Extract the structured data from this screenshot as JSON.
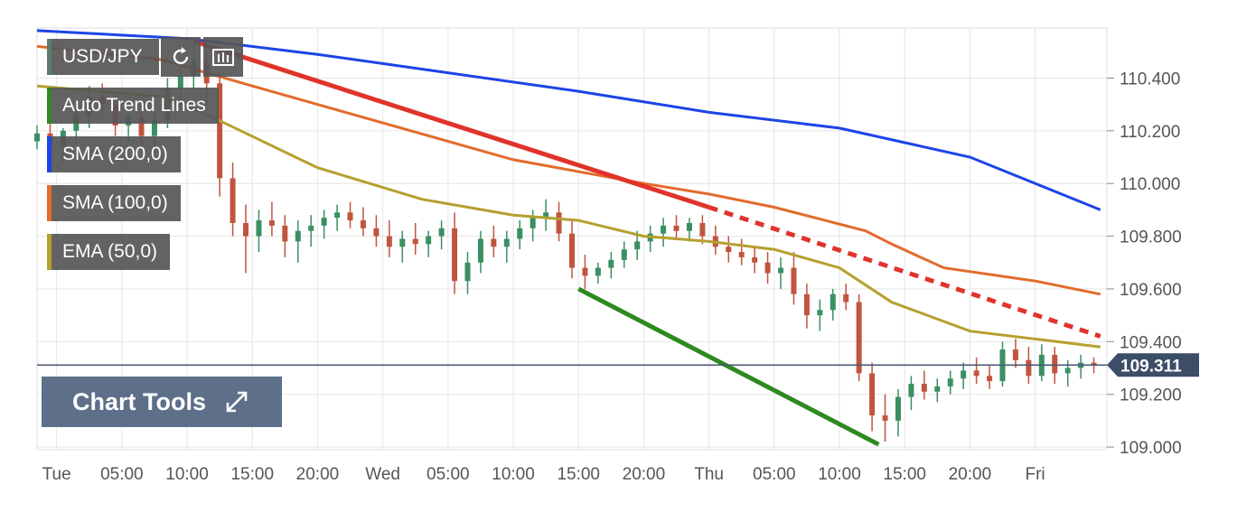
{
  "chart_data": {
    "type": "line",
    "symbol": "USD/JPY",
    "x_tick_labels": [
      "Tue",
      "05:00",
      "10:00",
      "15:00",
      "20:00",
      "Wed",
      "05:00",
      "10:00",
      "15:00",
      "20:00",
      "Thu",
      "05:00",
      "10:00",
      "15:00",
      "20:00",
      "Fri"
    ],
    "y_tick_labels": [
      "110.400",
      "110.200",
      "110.000",
      "109.800",
      "109.600",
      "109.400",
      "109.200",
      "109.000"
    ],
    "y_ticks": [
      110.4,
      110.2,
      110.0,
      109.8,
      109.6,
      109.4,
      109.2,
      109.0
    ],
    "ylim": [
      108.99,
      110.59
    ],
    "x_hours_range": [
      -1.5,
      80.5
    ],
    "grid": true,
    "current_price": 109.311,
    "current_price_label": "109.311",
    "indicators": [
      {
        "name": "SMA (200,0)",
        "color": "#1d44e8",
        "points": [
          [
            -1.5,
            110.58
          ],
          [
            10,
            110.55
          ],
          [
            20,
            110.49
          ],
          [
            30,
            110.42
          ],
          [
            40,
            110.35
          ],
          [
            50,
            110.27
          ],
          [
            60,
            110.21
          ],
          [
            70,
            110.1
          ],
          [
            80,
            109.9
          ]
        ]
      },
      {
        "name": "SMA (100,0)",
        "color": "#e36b2c",
        "points": [
          [
            -1.5,
            110.52
          ],
          [
            8,
            110.47
          ],
          [
            15,
            110.37
          ],
          [
            25,
            110.23
          ],
          [
            35,
            110.09
          ],
          [
            45,
            110.0
          ],
          [
            50,
            109.96
          ],
          [
            55,
            109.91
          ],
          [
            62,
            109.82
          ],
          [
            64,
            109.77
          ],
          [
            68,
            109.68
          ],
          [
            75,
            109.63
          ],
          [
            80,
            109.58
          ]
        ]
      },
      {
        "name": "EMA (50,0)",
        "color": "#b5a02f",
        "points": [
          [
            -1.5,
            110.37
          ],
          [
            8,
            110.33
          ],
          [
            12,
            110.25
          ],
          [
            20,
            110.06
          ],
          [
            28,
            109.94
          ],
          [
            35,
            109.88
          ],
          [
            40,
            109.86
          ],
          [
            45,
            109.8
          ],
          [
            50,
            109.78
          ],
          [
            55,
            109.75
          ],
          [
            60,
            109.68
          ],
          [
            64,
            109.55
          ],
          [
            70,
            109.44
          ],
          [
            75,
            109.41
          ],
          [
            80,
            109.38
          ]
        ]
      }
    ],
    "auto_trend_lines": {
      "name": "Auto Trend Lines",
      "lines": [
        {
          "color": "#e0342a",
          "style": "solid",
          "points": [
            [
              10.5,
              110.54
            ],
            [
              50,
              109.91
            ]
          ]
        },
        {
          "color": "#e0342a",
          "style": "dashed",
          "points": [
            [
              50,
              109.91
            ],
            [
              80,
              109.42
            ]
          ]
        },
        {
          "color": "#2d8a1f",
          "style": "solid",
          "points": [
            [
              40,
              109.6
            ],
            [
              63,
              109.01
            ]
          ]
        }
      ]
    },
    "candles": [
      [
        -1.5,
        110.16,
        110.22,
        110.13,
        110.19
      ],
      [
        -0.5,
        110.19,
        110.24,
        110.12,
        110.14
      ],
      [
        0.5,
        110.14,
        110.21,
        110.08,
        110.2
      ],
      [
        1.5,
        110.2,
        110.3,
        110.15,
        110.26
      ],
      [
        2.5,
        110.26,
        110.37,
        110.21,
        110.33
      ],
      [
        3.5,
        110.33,
        110.38,
        110.26,
        110.3
      ],
      [
        4.5,
        110.3,
        110.33,
        110.18,
        110.22
      ],
      [
        5.5,
        110.22,
        110.28,
        110.16,
        110.25
      ],
      [
        6.5,
        110.25,
        110.31,
        110.14,
        110.18
      ],
      [
        7.5,
        110.18,
        110.27,
        110.12,
        110.24
      ],
      [
        8.5,
        110.24,
        110.4,
        110.21,
        110.36
      ],
      [
        9.5,
        110.36,
        110.45,
        110.3,
        110.41
      ],
      [
        10.5,
        110.41,
        110.53,
        110.35,
        110.46
      ],
      [
        11.5,
        110.46,
        110.5,
        110.3,
        110.38
      ],
      [
        12.5,
        110.38,
        110.42,
        109.95,
        110.02
      ],
      [
        13.5,
        110.02,
        110.08,
        109.8,
        109.85
      ],
      [
        14.5,
        109.85,
        109.92,
        109.66,
        109.8
      ],
      [
        15.5,
        109.8,
        109.9,
        109.74,
        109.86
      ],
      [
        16.5,
        109.86,
        109.93,
        109.8,
        109.84
      ],
      [
        17.5,
        109.84,
        109.88,
        109.72,
        109.78
      ],
      [
        18.5,
        109.78,
        109.86,
        109.7,
        109.82
      ],
      [
        19.5,
        109.82,
        109.88,
        109.76,
        109.84
      ],
      [
        20.5,
        109.84,
        109.9,
        109.79,
        109.87
      ],
      [
        21.5,
        109.87,
        109.92,
        109.82,
        109.89
      ],
      [
        22.5,
        109.89,
        109.93,
        109.83,
        109.86
      ],
      [
        23.5,
        109.86,
        109.91,
        109.8,
        109.83
      ],
      [
        24.5,
        109.83,
        109.88,
        109.76,
        109.8
      ],
      [
        25.5,
        109.8,
        109.86,
        109.72,
        109.76
      ],
      [
        26.5,
        109.76,
        109.82,
        109.7,
        109.79
      ],
      [
        27.5,
        109.79,
        109.85,
        109.73,
        109.77
      ],
      [
        28.5,
        109.77,
        109.82,
        109.72,
        109.8
      ],
      [
        29.5,
        109.8,
        109.86,
        109.75,
        109.83
      ],
      [
        30.5,
        109.83,
        109.89,
        109.58,
        109.63
      ],
      [
        31.5,
        109.63,
        109.74,
        109.58,
        109.7
      ],
      [
        32.5,
        109.7,
        109.82,
        109.66,
        109.79
      ],
      [
        33.5,
        109.79,
        109.84,
        109.72,
        109.76
      ],
      [
        34.5,
        109.76,
        109.82,
        109.7,
        109.79
      ],
      [
        35.5,
        109.79,
        109.86,
        109.75,
        109.83
      ],
      [
        36.5,
        109.83,
        109.9,
        109.78,
        109.87
      ],
      [
        37.5,
        109.87,
        109.94,
        109.82,
        109.89
      ],
      [
        38.5,
        109.89,
        109.93,
        109.78,
        109.81
      ],
      [
        39.5,
        109.81,
        109.86,
        109.64,
        109.68
      ],
      [
        40.5,
        109.68,
        109.73,
        109.6,
        109.65
      ],
      [
        41.5,
        109.65,
        109.7,
        109.62,
        109.68
      ],
      [
        42.5,
        109.68,
        109.74,
        109.64,
        109.71
      ],
      [
        43.5,
        109.71,
        109.78,
        109.68,
        109.75
      ],
      [
        44.5,
        109.75,
        109.82,
        109.71,
        109.78
      ],
      [
        45.5,
        109.78,
        109.84,
        109.74,
        109.81
      ],
      [
        46.5,
        109.81,
        109.87,
        109.76,
        109.84
      ],
      [
        47.5,
        109.84,
        109.88,
        109.79,
        109.82
      ],
      [
        48.5,
        109.82,
        109.87,
        109.78,
        109.85
      ],
      [
        49.5,
        109.85,
        109.88,
        109.77,
        109.8
      ],
      [
        50.5,
        109.8,
        109.84,
        109.73,
        109.76
      ],
      [
        51.5,
        109.76,
        109.8,
        109.7,
        109.74
      ],
      [
        52.5,
        109.74,
        109.79,
        109.69,
        109.72
      ],
      [
        53.5,
        109.72,
        109.76,
        109.66,
        109.7
      ],
      [
        54.5,
        109.7,
        109.74,
        109.62,
        109.66
      ],
      [
        55.5,
        109.66,
        109.72,
        109.6,
        109.68
      ],
      [
        56.5,
        109.68,
        109.74,
        109.54,
        109.58
      ],
      [
        57.5,
        109.58,
        109.62,
        109.45,
        109.5
      ],
      [
        58.5,
        109.5,
        109.56,
        109.44,
        109.52
      ],
      [
        59.5,
        109.52,
        109.6,
        109.48,
        109.58
      ],
      [
        60.5,
        109.58,
        109.62,
        109.52,
        109.55
      ],
      [
        61.5,
        109.55,
        109.58,
        109.25,
        109.28
      ],
      [
        62.5,
        109.28,
        109.32,
        109.06,
        109.12
      ],
      [
        63.5,
        109.12,
        109.2,
        109.02,
        109.1
      ],
      [
        64.5,
        109.1,
        109.22,
        109.04,
        109.19
      ],
      [
        65.5,
        109.19,
        109.27,
        109.14,
        109.24
      ],
      [
        66.5,
        109.24,
        109.29,
        109.18,
        109.21
      ],
      [
        67.5,
        109.21,
        109.26,
        109.17,
        109.23
      ],
      [
        68.5,
        109.23,
        109.29,
        109.2,
        109.26
      ],
      [
        69.5,
        109.26,
        109.32,
        109.22,
        109.29
      ],
      [
        70.5,
        109.29,
        109.34,
        109.24,
        109.27
      ],
      [
        71.5,
        109.27,
        109.31,
        109.22,
        109.25
      ],
      [
        72.5,
        109.25,
        109.4,
        109.23,
        109.37
      ],
      [
        73.5,
        109.37,
        109.41,
        109.3,
        109.33
      ],
      [
        74.5,
        109.33,
        109.38,
        109.24,
        109.27
      ],
      [
        75.5,
        109.27,
        109.39,
        109.25,
        109.35
      ],
      [
        76.5,
        109.35,
        109.38,
        109.24,
        109.28
      ],
      [
        77.5,
        109.28,
        109.33,
        109.23,
        109.3
      ],
      [
        78.5,
        109.3,
        109.35,
        109.26,
        109.32
      ],
      [
        79.5,
        109.32,
        109.34,
        109.28,
        109.31
      ]
    ],
    "colors": {
      "up": "#3a8f63",
      "down": "#c0553f",
      "grid": "#e6e6e6",
      "price_line": "#4a5a73",
      "price_tag": "#3c4d68",
      "axis_text": "#555555"
    }
  },
  "legend": [
    {
      "label": "Auto Trend Lines",
      "color": "#2d8a1f"
    },
    {
      "label": "SMA (200,0)",
      "color": "#1d44e8"
    },
    {
      "label": "SMA (100,0)",
      "color": "#e36b2c"
    },
    {
      "label": "EMA (50,0)",
      "color": "#b5a02f"
    }
  ],
  "symbol_badge": {
    "label": "USD/JPY",
    "color": "#5b7d6e"
  },
  "chart_tools": {
    "label": "Chart Tools"
  },
  "icons": {
    "refresh": "refresh-icon",
    "chart_type": "chart-type-icon",
    "expand": "expand-arrows-icon"
  }
}
